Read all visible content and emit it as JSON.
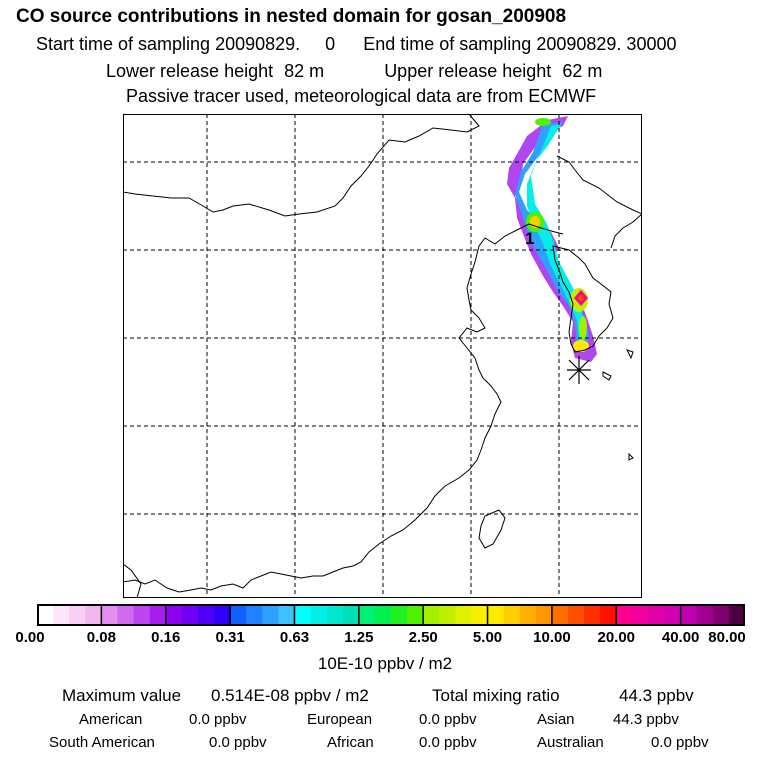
{
  "header": {
    "title": "CO  source contributions in nested domain for gosan_200908",
    "start_label": "Start time of sampling",
    "start_value": "20090829.     0",
    "end_label": "End time of sampling",
    "end_value": "20090829. 30000",
    "lower_label": "Lower release height",
    "lower_value": "82 m",
    "upper_label": "Upper release height",
    "upper_value": "62 m",
    "note": "Passive tracer used, meteorological data are from ECMWF"
  },
  "map": {
    "receptor_label": "1"
  },
  "colorbar": {
    "ticks": [
      "0.00",
      "0.08",
      "0.16",
      "0.31",
      "0.63",
      "1.25",
      "2.50",
      "5.00",
      "10.00",
      "20.00",
      "40.00",
      "80.00"
    ],
    "unit": "10E-10 ppbv / m2",
    "colors": [
      "#ffffff",
      "#fde6fb",
      "#f9cff5",
      "#f3b7f0",
      "#e48ef1",
      "#d06af0",
      "#bd46f0",
      "#a81eef",
      "#8d00f0",
      "#6f00f4",
      "#4e00f6",
      "#2e00f8",
      "#1060ff",
      "#2080ff",
      "#30a0ff",
      "#40c0ff",
      "#00ffff",
      "#00f0e8",
      "#00e8d0",
      "#00e0b8",
      "#00f078",
      "#00f050",
      "#20f020",
      "#50f000",
      "#a0f000",
      "#c0f000",
      "#e0f000",
      "#f8f000",
      "#ffe800",
      "#ffd000",
      "#ffb000",
      "#ff9800",
      "#ff7000",
      "#ff5000",
      "#ff3000",
      "#ff1000",
      "#ff0090",
      "#f000a0",
      "#e000a8",
      "#d000b0",
      "#c000b0",
      "#a00090",
      "#800070",
      "#500040"
    ]
  },
  "stats": {
    "max_label": "Maximum value",
    "max_value": "0.514E-08 ppbv / m2",
    "total_label": "Total mixing ratio",
    "total_value": "44.3 ppbv",
    "american_label": "American",
    "american_value": "0.0 ppbv",
    "european_label": "European",
    "european_value": "0.0 ppbv",
    "asian_label": "Asian",
    "asian_value": "44.3 ppbv",
    "south_american_label": "South American",
    "south_american_value": "0.0 ppbv",
    "african_label": "African",
    "african_value": "0.0 ppbv",
    "australian_label": "Australian",
    "australian_value": "0.0 ppbv"
  }
}
